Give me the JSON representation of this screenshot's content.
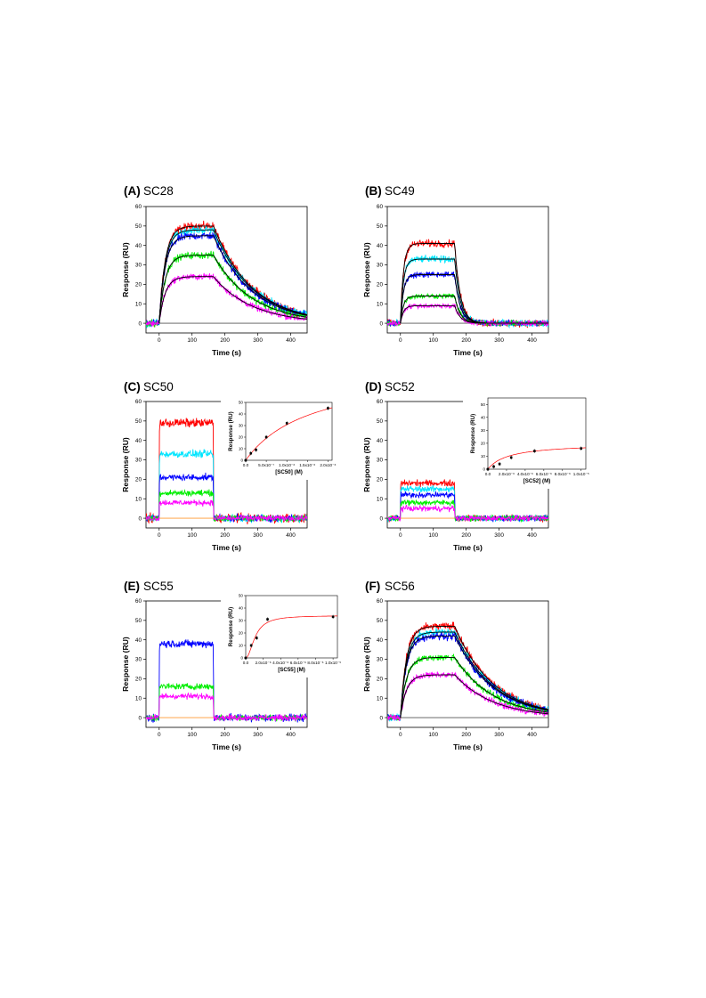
{
  "figure": {
    "panels": [
      {
        "letter": "(A)",
        "name": "SC28"
      },
      {
        "letter": "(B)",
        "name": "SC49"
      },
      {
        "letter": "(C)",
        "name": "SC50"
      },
      {
        "letter": "(D)",
        "name": "SC52"
      },
      {
        "letter": "(E)",
        "name": "SC55"
      },
      {
        "letter": "(F)",
        "name": "SC56"
      }
    ],
    "series_colors": [
      "#ff0000",
      "#00e5ff",
      "#0000ff",
      "#00ee00",
      "#ff00ff"
    ],
    "fit_color": "#000000",
    "inset_fit_color": "#ff0000"
  },
  "chart_data": [
    {
      "type": "line",
      "panel": "(A) SC28",
      "xlabel": "Time (s)",
      "ylabel": "Response (RU)",
      "xlim": [
        -40,
        450
      ],
      "ylim": [
        -5,
        60
      ],
      "xticks": [
        0,
        100,
        200,
        300,
        400
      ],
      "yticks": [
        0,
        10,
        20,
        30,
        40,
        50,
        60
      ],
      "injection_start_s": 0,
      "injection_end_s": 165,
      "series": [
        {
          "color": "#ff0000",
          "plateau": 50,
          "kinetic": "slow"
        },
        {
          "color": "#00e5ff",
          "plateau": 48,
          "kinetic": "slow"
        },
        {
          "color": "#0000ff",
          "plateau": 45,
          "kinetic": "slow"
        },
        {
          "color": "#00ee00",
          "plateau": 35,
          "kinetic": "slow"
        },
        {
          "color": "#ff00ff",
          "plateau": 24,
          "kinetic": "slow"
        }
      ],
      "fit_lines": true
    },
    {
      "type": "line",
      "panel": "(B) SC49",
      "xlabel": "Time (s)",
      "ylabel": "Response (RU)",
      "xlim": [
        -40,
        450
      ],
      "ylim": [
        -5,
        60
      ],
      "xticks": [
        0,
        100,
        200,
        300,
        400
      ],
      "yticks": [
        0,
        10,
        20,
        30,
        40,
        50,
        60
      ],
      "injection_start_s": 0,
      "injection_end_s": 165,
      "series": [
        {
          "color": "#ff0000",
          "plateau": 41,
          "kinetic": "medium"
        },
        {
          "color": "#00e5ff",
          "plateau": 33,
          "kinetic": "medium"
        },
        {
          "color": "#0000ff",
          "plateau": 25,
          "kinetic": "medium"
        },
        {
          "color": "#00ee00",
          "plateau": 14,
          "kinetic": "medium"
        },
        {
          "color": "#ff00ff",
          "plateau": 9,
          "kinetic": "medium"
        }
      ],
      "fit_lines": true
    },
    {
      "type": "line",
      "panel": "(C) SC50",
      "xlabel": "Time (s)",
      "ylabel": "Response (RU)",
      "xlim": [
        -40,
        450
      ],
      "ylim": [
        -5,
        60
      ],
      "xticks": [
        0,
        100,
        200,
        300,
        400
      ],
      "yticks": [
        0,
        10,
        20,
        30,
        40,
        50,
        60
      ],
      "injection_start_s": 0,
      "injection_end_s": 165,
      "series": [
        {
          "color": "#ff0000",
          "plateau": 49,
          "kinetic": "square"
        },
        {
          "color": "#00e5ff",
          "plateau": 33,
          "kinetic": "square"
        },
        {
          "color": "#0000ff",
          "plateau": 21,
          "kinetic": "square"
        },
        {
          "color": "#00ee00",
          "plateau": 13,
          "kinetic": "square"
        },
        {
          "color": "#ff00ff",
          "plateau": 8,
          "kinetic": "square"
        }
      ],
      "fit_lines": false,
      "inset": {
        "type": "scatter",
        "xlabel": "[SC50] (M)",
        "ylabel": "Response (RU)",
        "xlim": [
          0,
          2.1e-06
        ],
        "ylim": [
          0,
          50
        ],
        "xticks": [
          0,
          5e-07,
          1e-06,
          1.5e-06,
          2e-06
        ],
        "xticklabels": [
          "0.0",
          "5.0x10⁻⁷",
          "1.0x10⁻⁶",
          "1.5x10⁻⁶",
          "2.0x10⁻⁶"
        ],
        "yticks": [
          0,
          10,
          20,
          30,
          40,
          50
        ],
        "points": [
          {
            "x": 0,
            "y": 0
          },
          {
            "x": 1.25e-07,
            "y": 6
          },
          {
            "x": 2.5e-07,
            "y": 9
          },
          {
            "x": 5e-07,
            "y": 20
          },
          {
            "x": 1e-06,
            "y": 32
          },
          {
            "x": 2e-06,
            "y": 45
          }
        ],
        "fit": {
          "model": "steady-state",
          "rmax": 80,
          "kd": 1.6e-06
        }
      }
    },
    {
      "type": "line",
      "panel": "(D) SC52",
      "xlabel": "Time (s)",
      "ylabel": "Response (RU)",
      "xlim": [
        -40,
        450
      ],
      "ylim": [
        -5,
        60
      ],
      "xticks": [
        0,
        100,
        200,
        300,
        400
      ],
      "yticks": [
        0,
        10,
        20,
        30,
        40,
        50,
        60
      ],
      "injection_start_s": 0,
      "injection_end_s": 165,
      "series": [
        {
          "color": "#ff0000",
          "plateau": 18,
          "kinetic": "square"
        },
        {
          "color": "#00e5ff",
          "plateau": 15,
          "kinetic": "square"
        },
        {
          "color": "#0000ff",
          "plateau": 12,
          "kinetic": "square"
        },
        {
          "color": "#00ee00",
          "plateau": 8,
          "kinetic": "square"
        },
        {
          "color": "#ff00ff",
          "plateau": 5,
          "kinetic": "square"
        }
      ],
      "fit_lines": false,
      "inset": {
        "type": "scatter",
        "xlabel": "[SC52] (M)",
        "ylabel": "Response (RU)",
        "xlim": [
          0,
          1.05e-05
        ],
        "ylim": [
          0,
          55
        ],
        "xticks": [
          0,
          2e-06,
          4e-06,
          6e-06,
          8e-06,
          1e-05
        ],
        "xticklabels": [
          "0.0",
          "2.0x10⁻⁶",
          "4.0x10⁻⁶",
          "6.0x10⁻⁶",
          "8.0x10⁻⁶",
          "1.0x10⁻⁵"
        ],
        "yticks": [
          0,
          10,
          20,
          30,
          40,
          50
        ],
        "points": [
          {
            "x": 0,
            "y": 0
          },
          {
            "x": 6.25e-07,
            "y": 2
          },
          {
            "x": 1.25e-06,
            "y": 4
          },
          {
            "x": 2.5e-06,
            "y": 9
          },
          {
            "x": 5e-06,
            "y": 14
          },
          {
            "x": 1e-05,
            "y": 16
          }
        ],
        "fit": {
          "model": "steady-state",
          "rmax": 20,
          "kd": 2.2e-06
        }
      }
    },
    {
      "type": "line",
      "panel": "(E) SC55",
      "xlabel": "Time (s)",
      "ylabel": "Response (RU)",
      "xlim": [
        -40,
        450
      ],
      "ylim": [
        -5,
        60
      ],
      "xticks": [
        0,
        100,
        200,
        300,
        400
      ],
      "yticks": [
        0,
        10,
        20,
        30,
        40,
        50,
        60
      ],
      "injection_start_s": 0,
      "injection_end_s": 165,
      "series": [
        {
          "color": "#0000ff",
          "plateau": 38,
          "kinetic": "square"
        },
        {
          "color": "#00ee00",
          "plateau": 16,
          "kinetic": "square"
        },
        {
          "color": "#ff00ff",
          "plateau": 11,
          "kinetic": "square"
        }
      ],
      "fit_lines": false,
      "inset": {
        "type": "scatter",
        "xlabel": "[SC55] (M)",
        "ylabel": "Response (RU)",
        "xlim": [
          0,
          1.05e-05
        ],
        "ylim": [
          0,
          50
        ],
        "xticks": [
          0,
          2e-06,
          4e-06,
          6e-06,
          8e-06,
          1e-05
        ],
        "xticklabels": [
          "0.0",
          "2.0x10⁻⁶",
          "4.0x10⁻⁶",
          "6.0x10⁻⁶",
          "8.0x10⁻⁶",
          "1.0x10⁻⁵"
        ],
        "yticks": [
          0,
          10,
          20,
          30,
          40,
          50
        ],
        "points": [
          {
            "x": 0,
            "y": 0
          },
          {
            "x": 6.25e-07,
            "y": 10
          },
          {
            "x": 1.25e-06,
            "y": 16
          },
          {
            "x": 2.5e-06,
            "y": 31
          },
          {
            "x": 1e-05,
            "y": 33
          }
        ],
        "fit": {
          "model": "hill",
          "rmax": 34,
          "kd": 1.1e-06,
          "n": 2
        }
      }
    },
    {
      "type": "line",
      "panel": "(F) SC56",
      "xlabel": "Time (s)",
      "ylabel": "Response (RU)",
      "xlim": [
        -40,
        450
      ],
      "ylim": [
        -5,
        60
      ],
      "xticks": [
        0,
        100,
        200,
        300,
        400
      ],
      "yticks": [
        0,
        10,
        20,
        30,
        40,
        50,
        60
      ],
      "injection_start_s": 0,
      "injection_end_s": 165,
      "series": [
        {
          "color": "#ff0000",
          "plateau": 47,
          "kinetic": "slow"
        },
        {
          "color": "#00e5ff",
          "plateau": 44,
          "kinetic": "slow"
        },
        {
          "color": "#0000ff",
          "plateau": 42,
          "kinetic": "slow"
        },
        {
          "color": "#00ee00",
          "plateau": 31,
          "kinetic": "slow"
        },
        {
          "color": "#ff00ff",
          "plateau": 22,
          "kinetic": "slow"
        }
      ],
      "fit_lines": true
    }
  ]
}
